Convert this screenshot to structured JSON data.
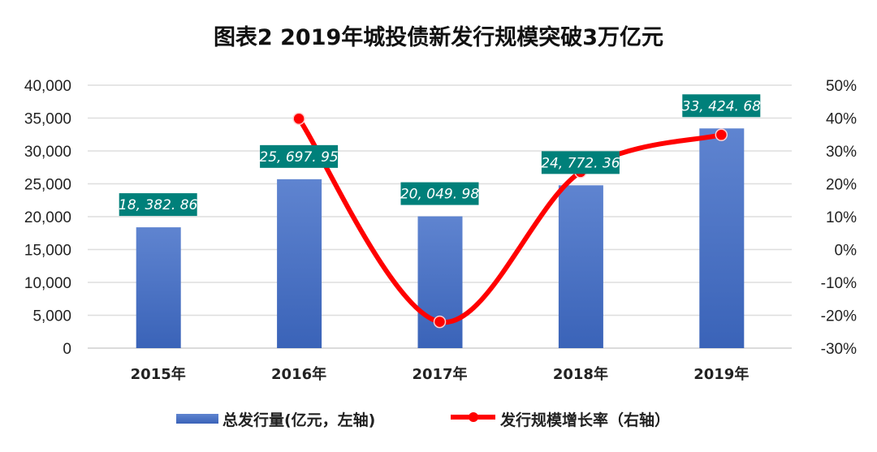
{
  "chart_data": {
    "type": "bar",
    "title": "图表2 2019年城投债新发行规模突破3万亿元",
    "categories": [
      "2015年",
      "2016年",
      "2017年",
      "2018年",
      "2019年"
    ],
    "series": [
      {
        "name": "总发行量(亿元，左轴)",
        "type": "bar",
        "axis": "left",
        "values": [
          18382.86,
          25697.95,
          20049.98,
          24772.36,
          33424.68
        ],
        "labels": [
          "18, 382. 86",
          "25, 697. 95",
          "20, 049. 98",
          "24, 772. 36",
          "33, 424. 68"
        ],
        "color": "#4a72c4"
      },
      {
        "name": "发行规模增长率（右轴）",
        "type": "line",
        "axis": "right",
        "values": [
          null,
          39.8,
          -22.0,
          23.6,
          34.9
        ],
        "color": "#ff0000"
      }
    ],
    "ylim": [
      0,
      40000
    ],
    "yticks": [
      "0",
      "5,000",
      "10,000",
      "15,000",
      "20,000",
      "25,000",
      "30,000",
      "35,000",
      "40,000"
    ],
    "y2lim": [
      -30,
      50
    ],
    "y2ticks": [
      "-30%",
      "-20%",
      "-10%",
      "0%",
      "10%",
      "20%",
      "30%",
      "40%",
      "50%"
    ],
    "label_bg": "#00807a",
    "grid": true,
    "legend": "bottom"
  }
}
